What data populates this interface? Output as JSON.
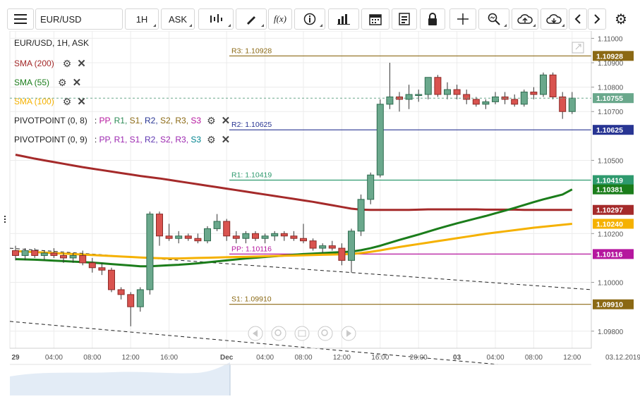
{
  "toolbar": {
    "symbol": "EUR/USD",
    "timeframe": "1H",
    "price_type": "ASK",
    "icons": [
      "menu-icon",
      "indicators-icon",
      "draw-icon",
      "function-icon",
      "info-icon",
      "chart-type-icon",
      "calendar-icon",
      "document-icon",
      "lock-icon",
      "crosshair-icon",
      "zoom-icon",
      "upload-icon",
      "download-icon",
      "arrow-left-icon",
      "arrow-right-icon",
      "settings-icon"
    ],
    "function_label": "f(x)"
  },
  "legend": {
    "title": "EUR/USD, 1H, ASK",
    "sma200": "SMA (200)",
    "sma55": "SMA (55)",
    "sma100": "SMA (100)",
    "pivot1_name": "PIVOTPOINT (0, 8)",
    "pivot2_name": "PIVOTPOINT (0, 9)",
    "pivot_sep": ":",
    "pivot_items": [
      "PP,",
      "R1,",
      "S1,",
      "R2,",
      "S2,",
      "R3,",
      "S3"
    ],
    "pivot1_colors": [
      "#b5179e",
      "#2e8b57",
      "#8b6914",
      "#283593",
      "#8b6914",
      "#8b6914",
      "#b5179e"
    ],
    "pivot2_colors": [
      "#9c27b0",
      "#9c27b0",
      "#9c27b0",
      "#5e35b1",
      "#9c27b0",
      "#9c27b0",
      "#00838f"
    ],
    "colors": {
      "sma200": "#a52a2a",
      "sma55": "#1b7d1b",
      "sma100": "#f5b100"
    }
  },
  "levels": {
    "r3": {
      "label": "R3: 1.10928",
      "value": 1.10928,
      "color": "#8b6914"
    },
    "r2": {
      "label": "R2: 1.10625",
      "value": 1.10625,
      "color": "#283593"
    },
    "r1": {
      "label": "R1: 1.10419",
      "value": 1.10419,
      "color": "#2e9a6e"
    },
    "pp": {
      "label": "PP: 1.10116",
      "value": 1.10116,
      "color": "#b5179e"
    },
    "s1": {
      "label": "S1: 1.09910",
      "value": 1.0991,
      "color": "#8b6914"
    }
  },
  "price_tags": [
    {
      "text": "1.10928",
      "value": 1.10928,
      "color": "#8b6914"
    },
    {
      "text": "1.10755",
      "value": 1.10755,
      "color": "#6aa88c"
    },
    {
      "text": "1.10625",
      "value": 1.10625,
      "color": "#283593"
    },
    {
      "text": "1.10419",
      "value": 1.10419,
      "color": "#2e9a6e"
    },
    {
      "text": "1.10381",
      "value": 1.10381,
      "color": "#1b7d1b"
    },
    {
      "text": "1.10297",
      "value": 1.10297,
      "color": "#a52a2a"
    },
    {
      "text": "1.10240",
      "value": 1.1024,
      "color": "#f5b100"
    },
    {
      "text": "1.10116",
      "value": 1.10116,
      "color": "#b5179e"
    },
    {
      "text": "1.09910",
      "value": 1.0991,
      "color": "#8b6914"
    }
  ],
  "chart_data": {
    "type": "candlestick",
    "title": "EUR/USD, 1H, ASK",
    "ylim": [
      1.0973,
      1.1103
    ],
    "y_ticks": [
      "1.11000",
      "1.10900",
      "1.10800",
      "1.10700",
      "1.10500",
      "1.10200",
      "1.10000",
      "1.09800"
    ],
    "y_tick_values": [
      1.11,
      1.109,
      1.108,
      1.107,
      1.105,
      1.102,
      1.1,
      1.098
    ],
    "x_ticks": [
      "29",
      "04:00",
      "08:00",
      "12:00",
      "16:00",
      "Dec",
      "04:00",
      "08:00",
      "12:00",
      "16:00",
      "20:00",
      "03",
      "04:00",
      "08:00",
      "12:00"
    ],
    "x_tick_index": [
      0,
      4,
      8,
      12,
      16,
      22,
      26,
      30,
      34,
      38,
      42,
      46,
      50,
      54,
      58
    ],
    "x_tick_bold": [
      true,
      false,
      false,
      false,
      false,
      true,
      false,
      false,
      false,
      false,
      false,
      true,
      false,
      false,
      false
    ],
    "current_time_label": "03.12.2019",
    "candles": [
      {
        "o": 1.1013,
        "h": 1.1015,
        "l": 1.1009,
        "c": 1.1011
      },
      {
        "o": 1.1011,
        "h": 1.1014,
        "l": 1.1009,
        "c": 1.1013
      },
      {
        "o": 1.1013,
        "h": 1.1014,
        "l": 1.101,
        "c": 1.1011
      },
      {
        "o": 1.1011,
        "h": 1.1013,
        "l": 1.1009,
        "c": 1.1012
      },
      {
        "o": 1.1012,
        "h": 1.1014,
        "l": 1.101,
        "c": 1.1011
      },
      {
        "o": 1.1011,
        "h": 1.1012,
        "l": 1.1008,
        "c": 1.101
      },
      {
        "o": 1.101,
        "h": 1.1012,
        "l": 1.1008,
        "c": 1.1011
      },
      {
        "o": 1.1011,
        "h": 1.1013,
        "l": 1.1007,
        "c": 1.1008
      },
      {
        "o": 1.1008,
        "h": 1.101,
        "l": 1.1004,
        "c": 1.1006
      },
      {
        "o": 1.1006,
        "h": 1.1008,
        "l": 1.1003,
        "c": 1.1005
      },
      {
        "o": 1.1005,
        "h": 1.1006,
        "l": 1.0996,
        "c": 1.0997
      },
      {
        "o": 1.0997,
        "h": 1.0998,
        "l": 1.0993,
        "c": 1.0995
      },
      {
        "o": 1.0995,
        "h": 1.0996,
        "l": 1.0982,
        "c": 1.099
      },
      {
        "o": 1.099,
        "h": 1.0998,
        "l": 1.0988,
        "c": 1.0997
      },
      {
        "o": 1.0997,
        "h": 1.1029,
        "l": 1.0995,
        "c": 1.1028
      },
      {
        "o": 1.1028,
        "h": 1.1029,
        "l": 1.1015,
        "c": 1.1019
      },
      {
        "o": 1.1019,
        "h": 1.1024,
        "l": 1.1017,
        "c": 1.1018
      },
      {
        "o": 1.1018,
        "h": 1.1021,
        "l": 1.1016,
        "c": 1.1019
      },
      {
        "o": 1.1019,
        "h": 1.102,
        "l": 1.1017,
        "c": 1.1018
      },
      {
        "o": 1.1018,
        "h": 1.102,
        "l": 1.1016,
        "c": 1.1017
      },
      {
        "o": 1.1017,
        "h": 1.1023,
        "l": 1.1016,
        "c": 1.1022
      },
      {
        "o": 1.1022,
        "h": 1.1028,
        "l": 1.1021,
        "c": 1.1025
      },
      {
        "o": 1.1025,
        "h": 1.1026,
        "l": 1.1017,
        "c": 1.1019
      },
      {
        "o": 1.1019,
        "h": 1.1021,
        "l": 1.1016,
        "c": 1.1018
      },
      {
        "o": 1.1018,
        "h": 1.1021,
        "l": 1.1016,
        "c": 1.102
      },
      {
        "o": 1.102,
        "h": 1.1021,
        "l": 1.1017,
        "c": 1.1018
      },
      {
        "o": 1.1018,
        "h": 1.102,
        "l": 1.1016,
        "c": 1.1019
      },
      {
        "o": 1.1019,
        "h": 1.1021,
        "l": 1.1017,
        "c": 1.102
      },
      {
        "o": 1.102,
        "h": 1.1021,
        "l": 1.1017,
        "c": 1.1019
      },
      {
        "o": 1.1019,
        "h": 1.1021,
        "l": 1.1017,
        "c": 1.1018
      },
      {
        "o": 1.1018,
        "h": 1.1024,
        "l": 1.1016,
        "c": 1.1017
      },
      {
        "o": 1.1017,
        "h": 1.1018,
        "l": 1.1013,
        "c": 1.1014
      },
      {
        "o": 1.1014,
        "h": 1.1016,
        "l": 1.1012,
        "c": 1.1015
      },
      {
        "o": 1.1015,
        "h": 1.1017,
        "l": 1.1013,
        "c": 1.1014
      },
      {
        "o": 1.1014,
        "h": 1.1016,
        "l": 1.1007,
        "c": 1.1009
      },
      {
        "o": 1.1009,
        "h": 1.1022,
        "l": 1.1004,
        "c": 1.1021
      },
      {
        "o": 1.1021,
        "h": 1.1036,
        "l": 1.1019,
        "c": 1.1034
      },
      {
        "o": 1.1034,
        "h": 1.1045,
        "l": 1.1032,
        "c": 1.1044
      },
      {
        "o": 1.1044,
        "h": 1.1075,
        "l": 1.1043,
        "c": 1.1073
      },
      {
        "o": 1.1073,
        "h": 1.109,
        "l": 1.1071,
        "c": 1.1076
      },
      {
        "o": 1.1076,
        "h": 1.1078,
        "l": 1.107,
        "c": 1.1075
      },
      {
        "o": 1.1075,
        "h": 1.1081,
        "l": 1.1071,
        "c": 1.1077
      },
      {
        "o": 1.1077,
        "h": 1.1079,
        "l": 1.1074,
        "c": 1.1077
      },
      {
        "o": 1.1077,
        "h": 1.1084,
        "l": 1.1075,
        "c": 1.1084
      },
      {
        "o": 1.1084,
        "h": 1.1085,
        "l": 1.1076,
        "c": 1.1077
      },
      {
        "o": 1.1077,
        "h": 1.1082,
        "l": 1.1075,
        "c": 1.1079
      },
      {
        "o": 1.1079,
        "h": 1.1081,
        "l": 1.1075,
        "c": 1.1077
      },
      {
        "o": 1.1077,
        "h": 1.1079,
        "l": 1.1073,
        "c": 1.1075
      },
      {
        "o": 1.1075,
        "h": 1.1076,
        "l": 1.1072,
        "c": 1.1073
      },
      {
        "o": 1.1073,
        "h": 1.1075,
        "l": 1.1071,
        "c": 1.1074
      },
      {
        "o": 1.1074,
        "h": 1.1078,
        "l": 1.1073,
        "c": 1.1076
      },
      {
        "o": 1.1076,
        "h": 1.1078,
        "l": 1.1073,
        "c": 1.1075
      },
      {
        "o": 1.1075,
        "h": 1.1077,
        "l": 1.1072,
        "c": 1.1073
      },
      {
        "o": 1.1073,
        "h": 1.1079,
        "l": 1.1072,
        "c": 1.1078
      },
      {
        "o": 1.1078,
        "h": 1.108,
        "l": 1.1075,
        "c": 1.1077
      },
      {
        "o": 1.1077,
        "h": 1.1086,
        "l": 1.1076,
        "c": 1.1085
      },
      {
        "o": 1.1085,
        "h": 1.1086,
        "l": 1.1075,
        "c": 1.1076
      },
      {
        "o": 1.1076,
        "h": 1.1078,
        "l": 1.1067,
        "c": 1.107
      },
      {
        "o": 1.107,
        "h": 1.1078,
        "l": 1.1069,
        "c": 1.10755
      }
    ],
    "series": [
      {
        "name": "SMA (200)",
        "color": "#a52a2a",
        "values": [
          1.10523,
          1.10515,
          1.10507,
          1.105,
          1.10493,
          1.10486,
          1.10479,
          1.10472,
          1.10466,
          1.1046,
          1.10454,
          1.10448,
          1.10442,
          1.10436,
          1.10431,
          1.10426,
          1.1042,
          1.10414,
          1.10408,
          1.10402,
          1.10396,
          1.1039,
          1.10384,
          1.10378,
          1.10372,
          1.10366,
          1.1036,
          1.10354,
          1.10348,
          1.10342,
          1.10336,
          1.1033,
          1.10323,
          1.10316,
          1.10309,
          1.10302,
          1.10298,
          1.10297,
          1.10297,
          1.10297,
          1.10297,
          1.10297,
          1.10298,
          1.10299,
          1.10299,
          1.10299,
          1.10299,
          1.10299,
          1.10299,
          1.10298,
          1.10298,
          1.10298,
          1.10298,
          1.10297,
          1.10297,
          1.10297,
          1.10297,
          1.10297,
          1.10297
        ]
      },
      {
        "name": "SMA (55)",
        "color": "#1b7d1b",
        "values": [
          1.10095,
          1.10094,
          1.10093,
          1.10091,
          1.10089,
          1.10087,
          1.10085,
          1.10083,
          1.10081,
          1.10078,
          1.10075,
          1.10072,
          1.10069,
          1.10066,
          1.10066,
          1.10068,
          1.1007,
          1.10072,
          1.10075,
          1.10078,
          1.10082,
          1.10086,
          1.1009,
          1.10094,
          1.10098,
          1.10101,
          1.10104,
          1.10107,
          1.1011,
          1.10113,
          1.10116,
          1.10118,
          1.1012,
          1.10122,
          1.10124,
          1.10126,
          1.10132,
          1.1014,
          1.1015,
          1.10162,
          1.10174,
          1.10185,
          1.10196,
          1.10208,
          1.1022,
          1.10231,
          1.10242,
          1.10252,
          1.10262,
          1.10272,
          1.10283,
          1.10294,
          1.10305,
          1.10317,
          1.10329,
          1.1034,
          1.1035,
          1.1036,
          1.10381
        ]
      },
      {
        "name": "SMA (100)",
        "color": "#f5b100",
        "values": [
          1.10128,
          1.10126,
          1.10124,
          1.10122,
          1.1012,
          1.10118,
          1.10116,
          1.10114,
          1.10112,
          1.1011,
          1.10108,
          1.10106,
          1.10104,
          1.10102,
          1.101,
          1.10099,
          1.10098,
          1.10098,
          1.10099,
          1.101,
          1.10101,
          1.10102,
          1.10103,
          1.10104,
          1.10105,
          1.10106,
          1.10107,
          1.10108,
          1.10109,
          1.1011,
          1.10111,
          1.10112,
          1.10113,
          1.10114,
          1.10115,
          1.10116,
          1.1012,
          1.10125,
          1.10131,
          1.10138,
          1.10145,
          1.10151,
          1.10157,
          1.10163,
          1.10169,
          1.10175,
          1.10181,
          1.10187,
          1.10193,
          1.10199,
          1.10204,
          1.10209,
          1.10214,
          1.10219,
          1.10224,
          1.10228,
          1.10232,
          1.10236,
          1.1024
        ]
      }
    ],
    "trendlines": [
      {
        "name": "upper-trendline",
        "from": {
          "i": 0,
          "v": 1.1014
        },
        "to": {
          "i": 60,
          "v": 1.0997
        }
      },
      {
        "name": "lower-trendline",
        "from": {
          "i": 0,
          "v": 1.0984
        },
        "to": {
          "i": 60,
          "v": 1.0963
        }
      }
    ]
  }
}
